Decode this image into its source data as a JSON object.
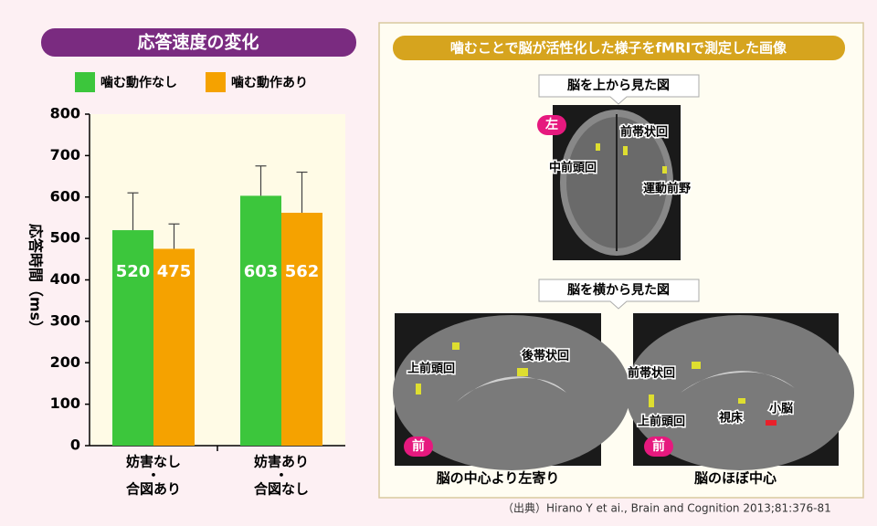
{
  "chart_data": {
    "type": "bar",
    "title": "応答速度の変化",
    "y_label": "応答時間（ms）",
    "categories": [
      [
        "妨害なし",
        "・",
        "合図あり"
      ],
      [
        "妨害あり",
        "・",
        "合図なし"
      ]
    ],
    "series": [
      {
        "name": "噛む動作なし",
        "color": "#3cc63c",
        "values": [
          520,
          603
        ],
        "errors": [
          90,
          72
        ]
      },
      {
        "name": "噛む動作あり",
        "color": "#f5a200",
        "values": [
          475,
          562
        ],
        "errors": [
          60,
          98
        ]
      }
    ],
    "ylim": [
      0,
      800
    ],
    "yticks": [
      0,
      100,
      200,
      300,
      400,
      500,
      600,
      700,
      800
    ]
  },
  "panel": {
    "title": "噛むことで脳が活性化した様子をfMRIで測定した画像",
    "top_view": {
      "heading": "脳を上から見た図",
      "side": "左",
      "labels": [
        "前帯状回",
        "中前頭回",
        "運動前野"
      ]
    },
    "side_view": {
      "heading": "脳を横から見た図",
      "left_image": {
        "labels": [
          "上前頭回",
          "後帯状回"
        ],
        "front": "前",
        "caption": "脳の中心より左寄り"
      },
      "right_image": {
        "labels": [
          "前帯状回",
          "上前頭回",
          "視床",
          "小脳"
        ],
        "front": "前",
        "caption": "脳のほぼ中心"
      }
    }
  },
  "source": "（出典）Hirano Y et ai., Brain and Cognition 2013;81:376-81"
}
